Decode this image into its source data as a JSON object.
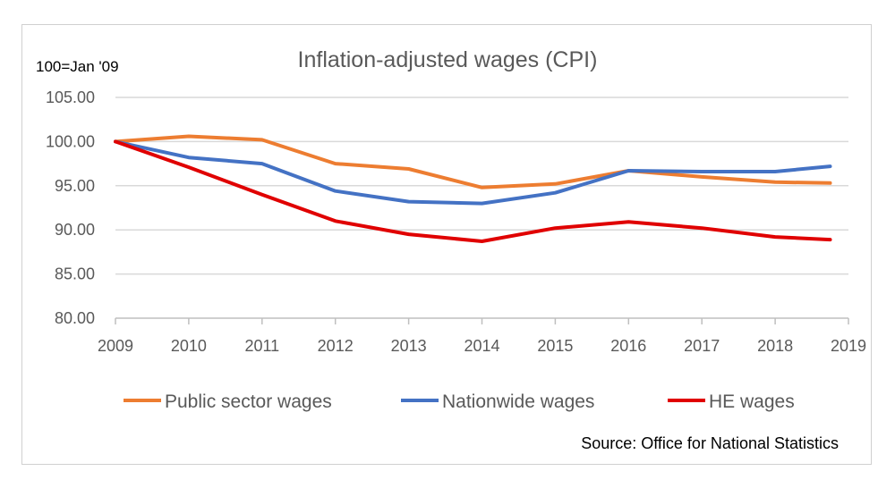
{
  "chart_data": {
    "type": "line",
    "title": "Inflation-adjusted wages (CPI)",
    "ylabel": "100=Jan '09",
    "xlabel": "",
    "xlim": [
      2009,
      2019
    ],
    "ylim": [
      80,
      105
    ],
    "x_ticks": [
      "2009",
      "2010",
      "2011",
      "2012",
      "2013",
      "2014",
      "2015",
      "2016",
      "2017",
      "2018",
      "2019"
    ],
    "y_ticks": [
      "80.00",
      "85.00",
      "90.00",
      "95.00",
      "100.00",
      "105.00"
    ],
    "grid": "horizontal",
    "legend_position": "bottom",
    "x": [
      2009,
      2010,
      2011,
      2012,
      2013,
      2014,
      2015,
      2016,
      2017,
      2018,
      2018.75
    ],
    "series": [
      {
        "name": "Public sector wages",
        "color": "#ED7D31",
        "values": [
          100.0,
          100.6,
          100.2,
          97.5,
          96.9,
          94.8,
          95.2,
          96.7,
          96.0,
          95.4,
          95.3
        ]
      },
      {
        "name": "Nationwide wages",
        "color": "#4472C4",
        "values": [
          100.0,
          98.2,
          97.5,
          94.4,
          93.2,
          93.0,
          94.2,
          96.7,
          96.6,
          96.6,
          97.2
        ]
      },
      {
        "name": "HE wages",
        "color": "#E00000",
        "values": [
          100.0,
          97.1,
          94.0,
          91.0,
          89.5,
          88.7,
          90.2,
          90.9,
          90.2,
          89.2,
          88.9
        ]
      }
    ],
    "annotation": "Source: Office for National Statistics"
  }
}
